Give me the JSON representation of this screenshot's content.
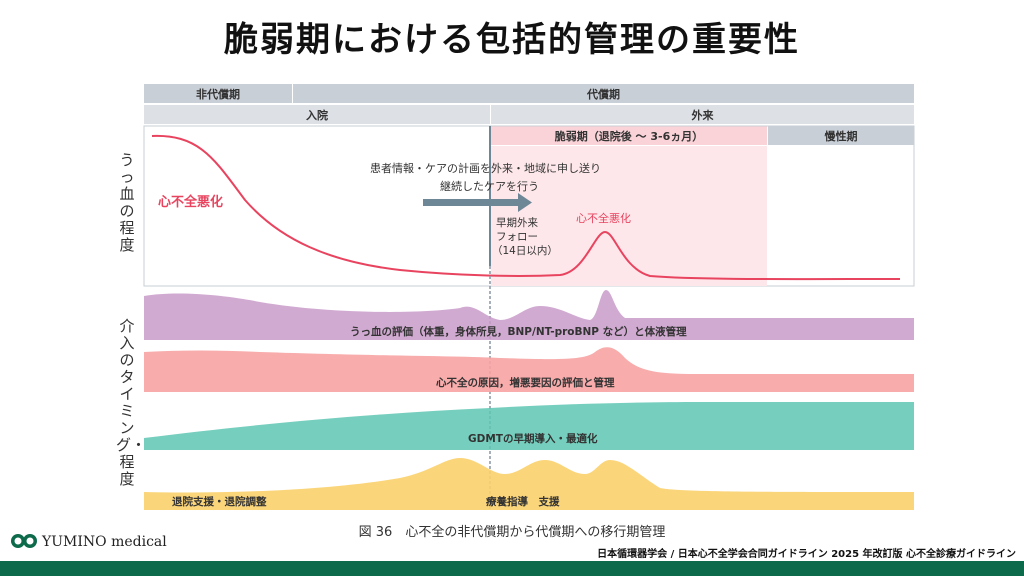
{
  "title": "脆弱期における包括的管理の重要性",
  "y_axis": {
    "top_label": "うっ血の程度",
    "bottom_label": "介入のタイミング・程度"
  },
  "phases": {
    "non_compensated": "非代償期",
    "compensated": "代償期",
    "inpatient": "入院",
    "outpatient": "外来",
    "vulnerable": "脆弱期（退院後 ～ 3-6ヵ月）",
    "chronic": "慢性期"
  },
  "annotations": {
    "hf_worsening_1": "心不全悪化",
    "hf_worsening_2": "心不全悪化",
    "handover_line1": "患者情報・ケアの計画を外来・地域に申し送り",
    "handover_line2": "継続したケアを行う",
    "early_followup_1": "早期外来",
    "early_followup_2": "フォロー",
    "early_followup_3": "（14日以内）"
  },
  "bands": {
    "congestion": "うっ血の評価（体重，身体所見，BNP/NT-proBNP など）と体液管理",
    "cause": "心不全の原因，増悪要因の評価と管理",
    "gdmt": "GDMTの早期導入・最適化",
    "support_left": "退院支援・退院調整",
    "support_main": "療養指導　支援"
  },
  "colors": {
    "congestion_line": "#e8445f",
    "vulnerable_bg": "#fde7ea",
    "band_purple": "#c99bc9",
    "band_pink": "#f7a3a3",
    "band_teal": "#5ec7b3",
    "band_yellow": "#fbd06c",
    "header_gray": "#c9cfd6",
    "arrow": "#6d8796"
  },
  "caption": "図 36　心不全の非代償期から代償期への移行期管理",
  "source": "日本循環器学会 / 日本心不全学会合同ガイドライン 2025 年改訂版 心不全診療ガイドライン",
  "brand": "YUMINO medical"
}
